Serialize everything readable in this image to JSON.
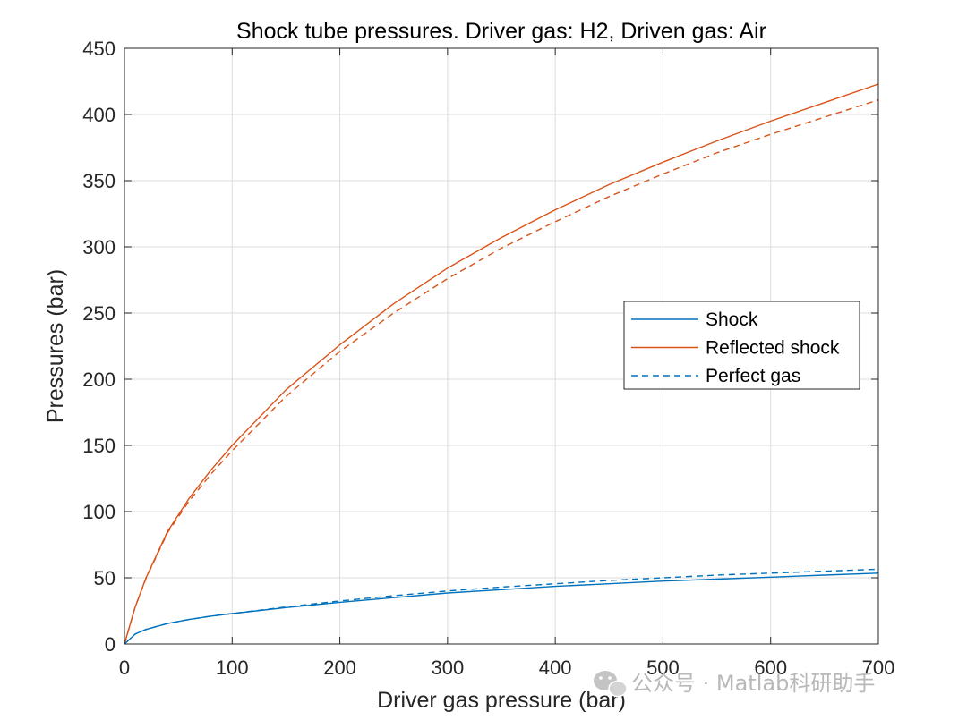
{
  "chart_data": {
    "type": "line",
    "title": "Shock tube pressures. Driver gas: H2, Driven gas: Air",
    "xlabel": "Driver gas pressure (bar)",
    "ylabel": "Pressures (bar)",
    "xlim": [
      0,
      700
    ],
    "ylim": [
      0,
      450
    ],
    "xticks": [
      0,
      100,
      200,
      300,
      400,
      500,
      600,
      700
    ],
    "yticks": [
      0,
      50,
      100,
      150,
      200,
      250,
      300,
      350,
      400,
      450
    ],
    "grid": true,
    "legend_position": "right",
    "legend": [
      {
        "label": "Shock",
        "color": "#0072BD",
        "style": "solid"
      },
      {
        "label": "Reflected shock",
        "color": "#D95319",
        "style": "solid"
      },
      {
        "label": "Perfect gas",
        "color": "#0072BD",
        "style": "dashed"
      }
    ],
    "series": [
      {
        "name": "Shock",
        "color": "#0072BD",
        "style": "solid",
        "x": [
          0,
          10,
          20,
          40,
          60,
          80,
          100,
          150,
          200,
          250,
          300,
          350,
          400,
          450,
          500,
          550,
          600,
          650,
          700
        ],
        "y": [
          0,
          7.5,
          11,
          15.5,
          18.5,
          21,
          23,
          27.5,
          31.5,
          35,
          38.5,
          41,
          43.5,
          45.5,
          47.5,
          49,
          50.5,
          52,
          53.5
        ]
      },
      {
        "name": "Reflected shock",
        "color": "#D95319",
        "style": "solid",
        "x": [
          0,
          10,
          20,
          40,
          60,
          80,
          100,
          150,
          200,
          250,
          300,
          350,
          400,
          450,
          500,
          550,
          600,
          650,
          700
        ],
        "y": [
          0,
          28,
          50,
          85,
          110,
          131,
          150,
          192,
          226,
          257,
          284,
          307,
          328,
          347,
          364,
          380,
          395,
          409,
          423
        ]
      },
      {
        "name": "Perfect gas (reflected)",
        "color": "#D95319",
        "style": "dashed",
        "x": [
          0,
          10,
          20,
          40,
          60,
          80,
          100,
          150,
          200,
          250,
          300,
          350,
          400,
          450,
          500,
          550,
          600,
          650,
          700
        ],
        "y": [
          0,
          28,
          49.5,
          84,
          108,
          128,
          146,
          187,
          221,
          250,
          276,
          299,
          319,
          338,
          355,
          371,
          385,
          398,
          411
        ]
      },
      {
        "name": "Perfect gas (shock)",
        "color": "#0072BD",
        "style": "dashed",
        "x": [
          0,
          10,
          20,
          40,
          60,
          80,
          100,
          150,
          200,
          250,
          300,
          350,
          400,
          450,
          500,
          550,
          600,
          650,
          700
        ],
        "y": [
          0,
          7.5,
          11,
          15.5,
          18.5,
          21,
          23,
          28,
          32.5,
          36.5,
          40,
          43,
          45.5,
          48,
          50,
          52,
          53.5,
          55,
          56.5
        ]
      }
    ]
  },
  "watermark": {
    "text": "公众号 · Matlab科研助手",
    "icon": "wechat-icon"
  }
}
